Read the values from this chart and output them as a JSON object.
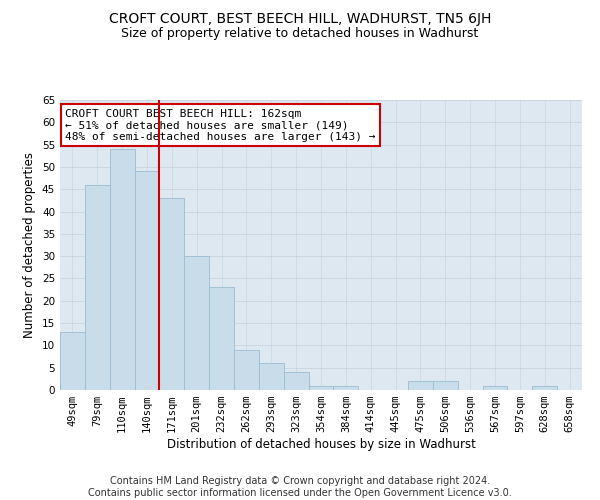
{
  "title": "CROFT COURT, BEST BEECH HILL, WADHURST, TN5 6JH",
  "subtitle": "Size of property relative to detached houses in Wadhurst",
  "xlabel": "Distribution of detached houses by size in Wadhurst",
  "ylabel": "Number of detached properties",
  "categories": [
    "49sqm",
    "79sqm",
    "110sqm",
    "140sqm",
    "171sqm",
    "201sqm",
    "232sqm",
    "262sqm",
    "293sqm",
    "323sqm",
    "354sqm",
    "384sqm",
    "414sqm",
    "445sqm",
    "475sqm",
    "506sqm",
    "536sqm",
    "567sqm",
    "597sqm",
    "628sqm",
    "658sqm"
  ],
  "values": [
    13,
    46,
    54,
    49,
    43,
    30,
    23,
    9,
    6,
    4,
    1,
    1,
    0,
    0,
    2,
    2,
    0,
    1,
    0,
    1,
    0
  ],
  "bar_color": "#c9dcea",
  "bar_edge_color": "#9bbdd1",
  "vline_x": 3.5,
  "vline_color": "#cc0000",
  "annotation_text": "CROFT COURT BEST BEECH HILL: 162sqm\n← 51% of detached houses are smaller (149)\n48% of semi-detached houses are larger (143) →",
  "annotation_box_color": "#ffffff",
  "annotation_box_edge": "#cc0000",
  "ylim": [
    0,
    65
  ],
  "yticks": [
    0,
    5,
    10,
    15,
    20,
    25,
    30,
    35,
    40,
    45,
    50,
    55,
    60,
    65
  ],
  "grid_color": "#c8d4e0",
  "background_color": "#dde8f0",
  "footer_line1": "Contains HM Land Registry data © Crown copyright and database right 2024.",
  "footer_line2": "Contains public sector information licensed under the Open Government Licence v3.0.",
  "title_fontsize": 10,
  "subtitle_fontsize": 9,
  "axis_label_fontsize": 8.5,
  "tick_fontsize": 7.5,
  "annotation_fontsize": 8,
  "footer_fontsize": 7
}
